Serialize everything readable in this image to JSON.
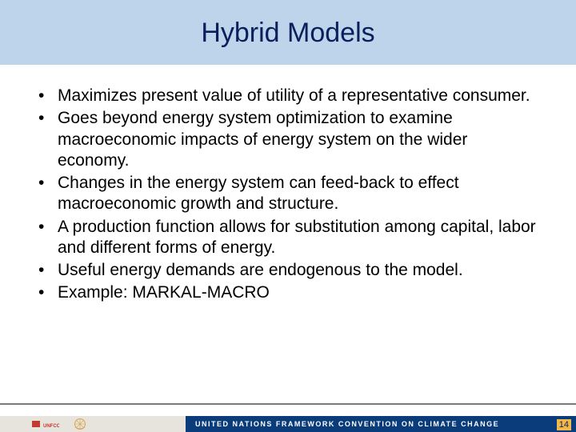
{
  "colors": {
    "header_bg": "#bdd4ea",
    "title_color": "#0a1f5c",
    "body_bg": "#ffffff",
    "bullet_text": "#000000",
    "footer_line": "#7a7a7a",
    "footer_left_bg": "#e7e4de",
    "footer_right_bg": "#0a3b7a",
    "footer_right_text": "#ffffff",
    "pagenum_bg": "#f2b84a",
    "pagenum_text": "#0a1f5c",
    "unfccc_logo": "#c23b2e",
    "un_logo": "#d8a54a"
  },
  "typography": {
    "title_fontsize": 34,
    "bullet_fontsize": 21,
    "footer_fontsize": 9
  },
  "title": "Hybrid Models",
  "bullets": [
    "Maximizes present value of utility of a representative consumer.",
    "Goes beyond energy system optimization to examine macroeconomic impacts of energy system on the wider economy.",
    "Changes in the energy system can feed-back to effect macroeconomic growth and structure.",
    "A production function allows for substitution among capital, labor and different forms of energy.",
    "Useful energy demands are endogenous to the model.",
    "Example: MARKAL-MACRO"
  ],
  "footer": {
    "org_text": "UNITED NATIONS FRAMEWORK CONVENTION ON CLIMATE CHANGE",
    "left_logo_label": "UNFCCC",
    "un_logo_label": "UN"
  },
  "page_number": "14"
}
